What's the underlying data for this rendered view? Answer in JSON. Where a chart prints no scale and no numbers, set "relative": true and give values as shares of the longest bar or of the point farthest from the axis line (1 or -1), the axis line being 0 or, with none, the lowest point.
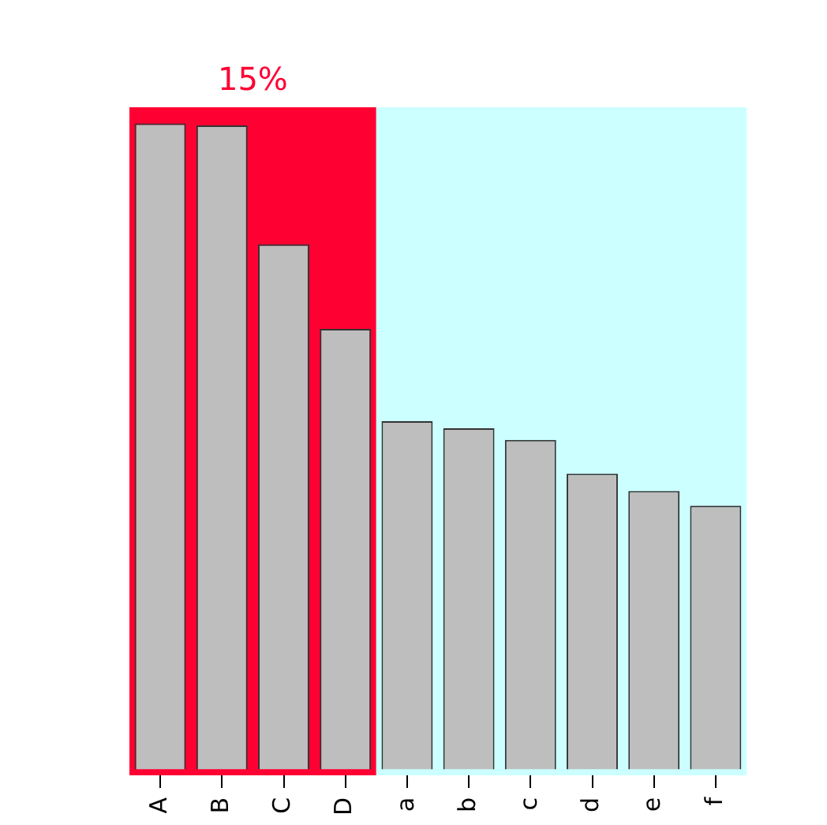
{
  "chart_data": {
    "type": "bar",
    "relative": true,
    "categories": [
      "A",
      "B",
      "C",
      "D",
      "a",
      "b",
      "c",
      "d",
      "e",
      "f"
    ],
    "values": [
      1,
      0.997,
      0.813,
      0.682,
      0.539,
      0.528,
      0.51,
      0.458,
      0.431,
      0.408
    ],
    "color": "#bebebe",
    "bands": [
      {
        "axis": "x",
        "from": "A",
        "to": "D",
        "color": "#ff0033",
        "label": "15%"
      },
      {
        "axis": "x",
        "from": "a",
        "to": "f",
        "color": "#ccffff"
      }
    ]
  }
}
